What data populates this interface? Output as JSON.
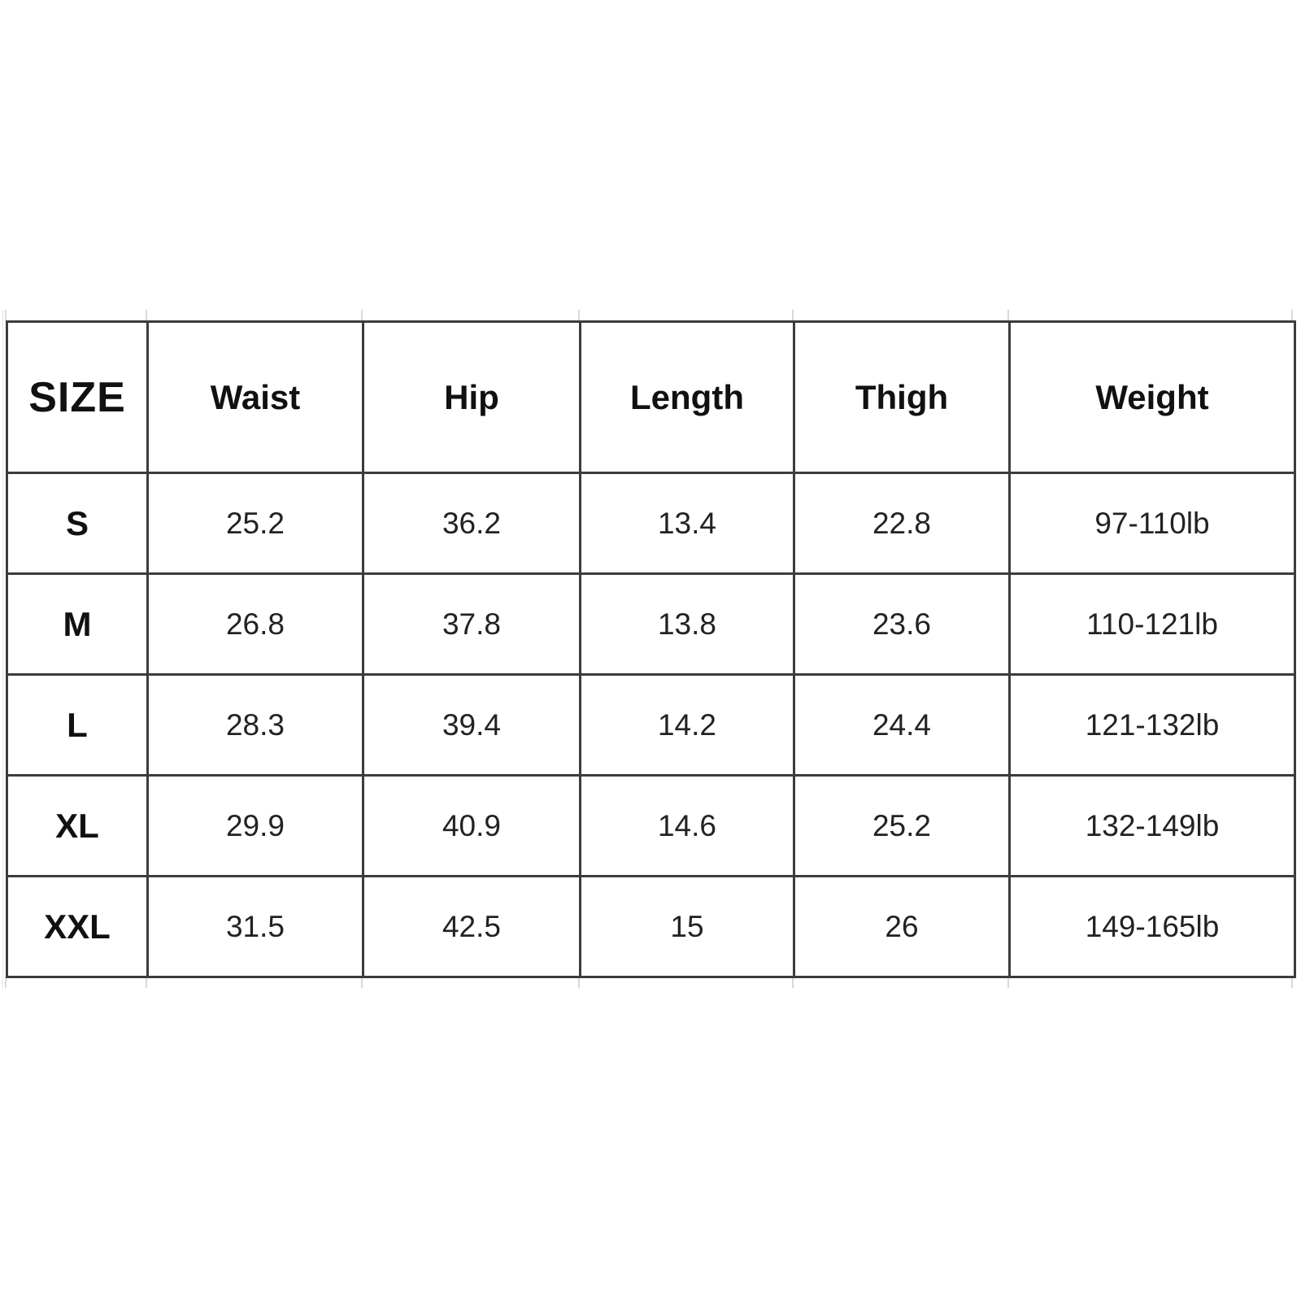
{
  "chart_data": {
    "type": "table",
    "headers": [
      "SIZE",
      "Waist",
      "Hip",
      "Length",
      "Thigh",
      "Weight"
    ],
    "rows": [
      [
        "S",
        "25.2",
        "36.2",
        "13.4",
        "22.8",
        "97-110lb"
      ],
      [
        "M",
        "26.8",
        "37.8",
        "13.8",
        "23.6",
        "110-121lb"
      ],
      [
        "L",
        "28.3",
        "39.4",
        "14.2",
        "24.4",
        "121-132lb"
      ],
      [
        "XL",
        "29.9",
        "40.9",
        "14.6",
        "25.2",
        "132-149lb"
      ],
      [
        "XXL",
        "31.5",
        "42.5",
        "15",
        "26",
        "149-165lb"
      ]
    ]
  },
  "colors": {
    "background": "#ffffff",
    "border": "#3c3c3c",
    "header_text": "#111111",
    "cell_text": "#222222",
    "faint_gridline": "#d9d9d9"
  }
}
